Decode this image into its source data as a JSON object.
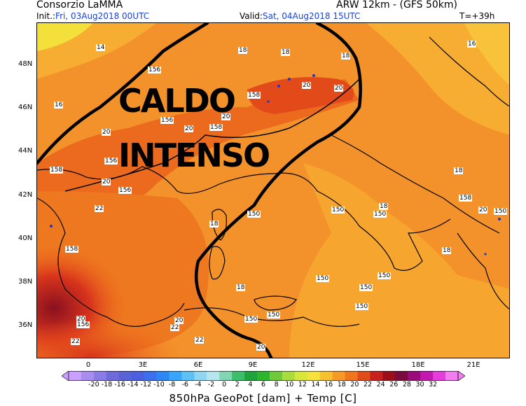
{
  "header": {
    "title_left": "Consorzio LaMMA",
    "title_right": "ARW 12km - (GFS 50km)",
    "init_label": "Init.:",
    "init_value": "Fri, 03Aug2018 00UTC",
    "valid_label": "Valid:",
    "valid_value": "Sat, 04Aug2018 15UTC",
    "forecast_step": "T=+39h"
  },
  "annotation": {
    "line1": "CALDO",
    "line2": "INTENSO"
  },
  "axes": {
    "lat_labels": [
      "48N",
      "46N",
      "44N",
      "42N",
      "40N",
      "38N",
      "36N"
    ],
    "lon_labels": [
      "0",
      "3E",
      "6E",
      "9E",
      "12E",
      "15E",
      "18E",
      "21E"
    ]
  },
  "contour_labels": [
    "14",
    "16",
    "18",
    "20",
    "22",
    "150",
    "156",
    "158"
  ],
  "colorbar": {
    "ticks": [
      "-20",
      "-18",
      "-16",
      "-14",
      "-12",
      "-10",
      "-8",
      "-6",
      "-4",
      "-2",
      "0",
      "2",
      "4",
      "6",
      "8",
      "10",
      "12",
      "14",
      "16",
      "18",
      "20",
      "22",
      "24",
      "26",
      "28",
      "30",
      "32"
    ],
    "colors": [
      "#c9a0ff",
      "#a88cf0",
      "#8a7be6",
      "#6f6adc",
      "#5a62d8",
      "#4b5fe0",
      "#3a6ff0",
      "#2f86f5",
      "#38a6f8",
      "#5fc0f5",
      "#8fd6f2",
      "#b5e6ee",
      "#7fd6b0",
      "#3bbf68",
      "#1ea43a",
      "#2db52d",
      "#6fc93a",
      "#a9dc3c",
      "#d9e63a",
      "#f5e23a",
      "#f8c02f",
      "#f59a25",
      "#f0751d",
      "#e34a1a",
      "#c8201a",
      "#9c0f1a",
      "#7a0b3c",
      "#9a0c7a",
      "#c417b0",
      "#e53ddc",
      "#f27cf0"
    ],
    "title": "850hPa GeoPot [dam] + Temp [C]"
  }
}
